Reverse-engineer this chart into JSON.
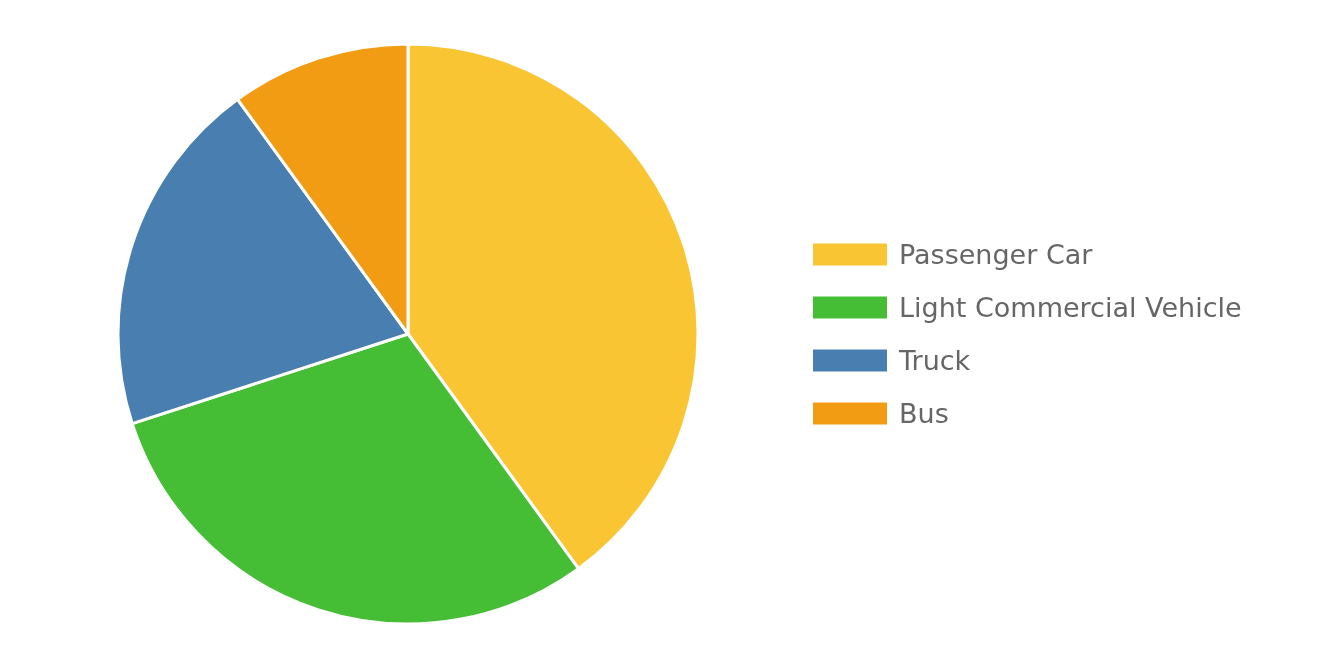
{
  "chart_data": {
    "type": "pie",
    "categories": [
      "Passenger Car",
      "Light Commercial Vehicle",
      "Truck",
      "Bus"
    ],
    "values": [
      40,
      30,
      20,
      10
    ],
    "colors": [
      "#f9c532",
      "#45be35",
      "#487fb0",
      "#f29c13"
    ],
    "legend": "right"
  }
}
